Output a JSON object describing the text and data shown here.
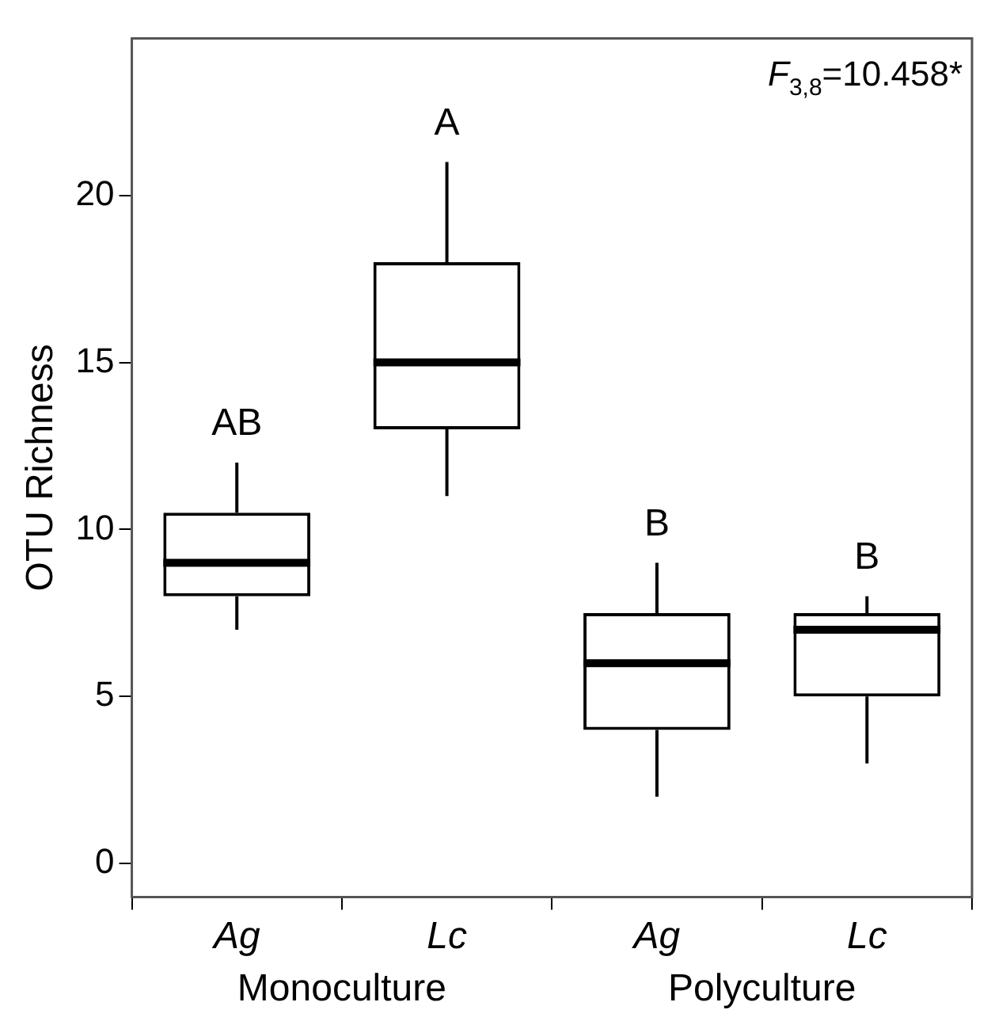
{
  "chart_data": {
    "type": "box",
    "ylabel": "OTU Richness",
    "categories": [
      "Ag",
      "Lc",
      "Ag",
      "Lc"
    ],
    "boxes": [
      {
        "low": 7,
        "q1": 8,
        "median": 9,
        "q3": 10.5,
        "high": 12
      },
      {
        "low": 11,
        "q1": 13,
        "median": 15,
        "q3": 18,
        "high": 21
      },
      {
        "low": 2,
        "q1": 4,
        "median": 6,
        "q3": 7.5,
        "high": 9
      },
      {
        "low": 3,
        "q1": 5,
        "median": 7,
        "q3": 7.5,
        "high": 8
      }
    ],
    "color": "#000000",
    "ylim": [
      -1,
      24.7
    ],
    "yticks": [
      0,
      5,
      10,
      15,
      20
    ],
    "grid": false,
    "legend": false,
    "annotations": [
      "F$_{3,8}$=10.458*",
      "Monoculture",
      "Polyculture",
      "AB",
      "A",
      "B",
      "B"
    ]
  }
}
